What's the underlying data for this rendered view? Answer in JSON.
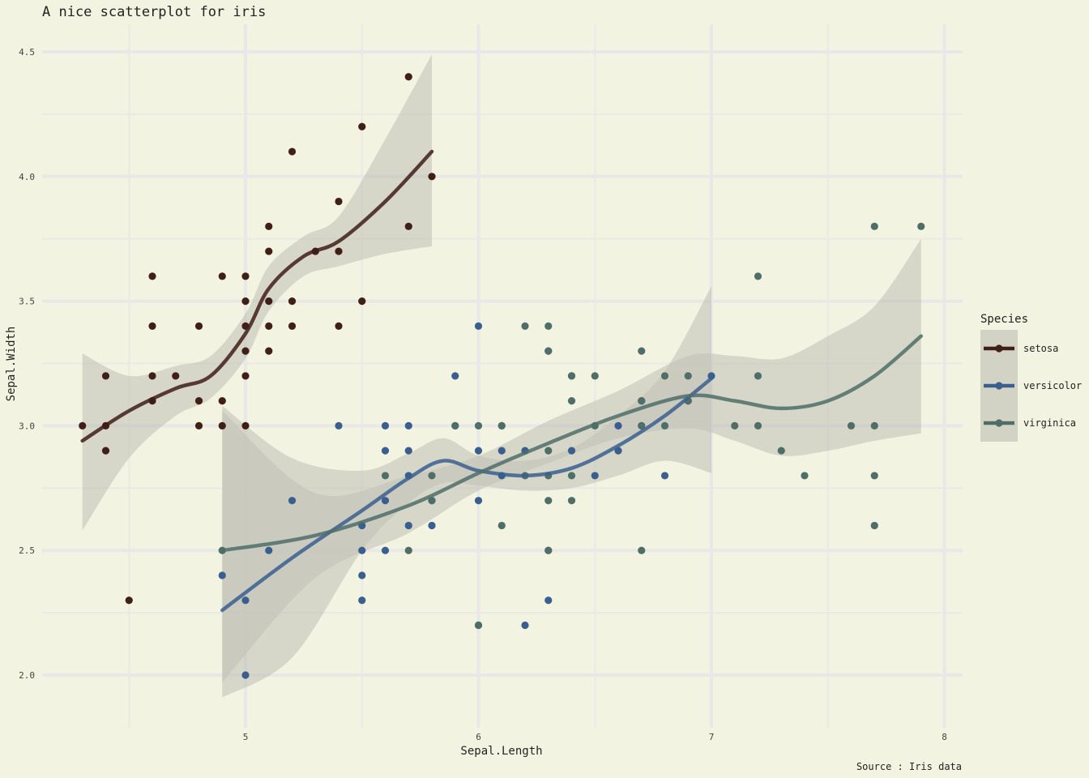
{
  "chart_data": {
    "type": "scatter",
    "title": "A nice scatterplot for iris",
    "xlabel": "Sepal.Length",
    "ylabel": "Sepal.Width",
    "caption": "Source : Iris data",
    "xlim": [
      4.2,
      8.1
    ],
    "ylim": [
      1.8,
      4.6
    ],
    "x_ticks": [
      5,
      6,
      7,
      8
    ],
    "x_tick_labels": [
      "5",
      "6",
      "7",
      "8"
    ],
    "y_ticks": [
      2.0,
      2.5,
      3.0,
      3.5,
      4.0,
      4.5
    ],
    "y_tick_labels": [
      "2.0",
      "2.5",
      "3.0",
      "3.5",
      "4.0",
      "4.5"
    ],
    "grid": true,
    "legend": {
      "title": "Species",
      "position": "right"
    },
    "series": [
      {
        "name": "setosa",
        "color": "#3f1f18",
        "points": [
          [
            4.3,
            3.0
          ],
          [
            4.4,
            3.0
          ],
          [
            4.4,
            3.2
          ],
          [
            4.4,
            2.9
          ],
          [
            4.5,
            2.3
          ],
          [
            4.6,
            3.6
          ],
          [
            4.6,
            3.4
          ],
          [
            4.6,
            3.2
          ],
          [
            4.6,
            3.1
          ],
          [
            4.7,
            3.2
          ],
          [
            4.8,
            3.4
          ],
          [
            4.8,
            3.1
          ],
          [
            4.8,
            3.0
          ],
          [
            4.9,
            3.6
          ],
          [
            4.9,
            3.1
          ],
          [
            4.9,
            3.0
          ],
          [
            5.0,
            3.6
          ],
          [
            5.0,
            3.5
          ],
          [
            5.0,
            3.4
          ],
          [
            5.0,
            3.3
          ],
          [
            5.0,
            3.2
          ],
          [
            5.0,
            3.0
          ],
          [
            5.1,
            3.8
          ],
          [
            5.1,
            3.7
          ],
          [
            5.1,
            3.5
          ],
          [
            5.1,
            3.4
          ],
          [
            5.1,
            3.3
          ],
          [
            5.2,
            4.1
          ],
          [
            5.2,
            3.5
          ],
          [
            5.2,
            3.4
          ],
          [
            5.3,
            3.7
          ],
          [
            5.4,
            3.9
          ],
          [
            5.4,
            3.7
          ],
          [
            5.4,
            3.4
          ],
          [
            5.5,
            4.2
          ],
          [
            5.5,
            3.5
          ],
          [
            5.7,
            4.4
          ],
          [
            5.7,
            3.8
          ],
          [
            5.8,
            4.0
          ]
        ],
        "smooth": [
          [
            4.3,
            2.94
          ],
          [
            4.5,
            3.06
          ],
          [
            4.7,
            3.15
          ],
          [
            4.85,
            3.2
          ],
          [
            5.0,
            3.37
          ],
          [
            5.1,
            3.55
          ],
          [
            5.25,
            3.68
          ],
          [
            5.4,
            3.74
          ],
          [
            5.6,
            3.9
          ],
          [
            5.8,
            4.1
          ]
        ],
        "band_upper": [
          [
            4.3,
            3.29
          ],
          [
            4.5,
            3.2
          ],
          [
            4.7,
            3.24
          ],
          [
            4.85,
            3.28
          ],
          [
            5.0,
            3.45
          ],
          [
            5.1,
            3.64
          ],
          [
            5.25,
            3.76
          ],
          [
            5.4,
            3.84
          ],
          [
            5.6,
            4.15
          ],
          [
            5.8,
            4.49
          ]
        ],
        "band_lower": [
          [
            4.3,
            2.58
          ],
          [
            4.5,
            2.87
          ],
          [
            4.7,
            3.04
          ],
          [
            4.85,
            3.11
          ],
          [
            5.0,
            3.27
          ],
          [
            5.1,
            3.46
          ],
          [
            5.25,
            3.6
          ],
          [
            5.4,
            3.64
          ],
          [
            5.6,
            3.69
          ],
          [
            5.8,
            3.72
          ]
        ]
      },
      {
        "name": "versicolor",
        "color": "#3a5f8f",
        "points": [
          [
            4.9,
            2.4
          ],
          [
            5.0,
            2.3
          ],
          [
            5.0,
            2.0
          ],
          [
            5.1,
            2.5
          ],
          [
            5.2,
            2.7
          ],
          [
            5.4,
            3.0
          ],
          [
            5.5,
            2.6
          ],
          [
            5.5,
            2.5
          ],
          [
            5.5,
            2.4
          ],
          [
            5.5,
            2.3
          ],
          [
            5.6,
            3.0
          ],
          [
            5.6,
            2.9
          ],
          [
            5.6,
            2.7
          ],
          [
            5.6,
            2.5
          ],
          [
            5.7,
            3.0
          ],
          [
            5.7,
            2.9
          ],
          [
            5.7,
            2.8
          ],
          [
            5.7,
            2.6
          ],
          [
            5.8,
            2.7
          ],
          [
            5.8,
            2.6
          ],
          [
            5.9,
            3.2
          ],
          [
            5.9,
            3.0
          ],
          [
            6.0,
            3.4
          ],
          [
            6.0,
            2.9
          ],
          [
            6.0,
            2.7
          ],
          [
            6.0,
            2.2
          ],
          [
            6.1,
            3.0
          ],
          [
            6.1,
            2.9
          ],
          [
            6.1,
            2.8
          ],
          [
            6.2,
            2.9
          ],
          [
            6.2,
            2.2
          ],
          [
            6.3,
            3.3
          ],
          [
            6.3,
            2.5
          ],
          [
            6.3,
            2.3
          ],
          [
            6.4,
            3.2
          ],
          [
            6.4,
            2.9
          ],
          [
            6.5,
            2.8
          ],
          [
            6.6,
            3.0
          ],
          [
            6.6,
            2.9
          ],
          [
            6.7,
            3.1
          ],
          [
            6.7,
            3.0
          ],
          [
            6.8,
            2.8
          ],
          [
            6.9,
            3.1
          ],
          [
            7.0,
            3.2
          ]
        ],
        "smooth": [
          [
            4.9,
            2.26
          ],
          [
            5.2,
            2.47
          ],
          [
            5.5,
            2.66
          ],
          [
            5.7,
            2.79
          ],
          [
            5.85,
            2.86
          ],
          [
            6.0,
            2.82
          ],
          [
            6.2,
            2.8
          ],
          [
            6.4,
            2.83
          ],
          [
            6.6,
            2.92
          ],
          [
            6.8,
            3.04
          ],
          [
            7.0,
            3.19
          ]
        ],
        "band_upper": [
          [
            4.9,
            3.08
          ],
          [
            5.2,
            2.87
          ],
          [
            5.5,
            2.82
          ],
          [
            5.7,
            2.89
          ],
          [
            5.85,
            2.95
          ],
          [
            6.0,
            2.88
          ],
          [
            6.2,
            2.86
          ],
          [
            6.4,
            2.91
          ],
          [
            6.6,
            3.04
          ],
          [
            6.8,
            3.22
          ],
          [
            7.0,
            3.56
          ]
        ],
        "band_lower": [
          [
            4.9,
            1.91
          ],
          [
            5.2,
            2.07
          ],
          [
            5.5,
            2.5
          ],
          [
            5.7,
            2.69
          ],
          [
            5.85,
            2.77
          ],
          [
            6.0,
            2.76
          ],
          [
            6.2,
            2.74
          ],
          [
            6.4,
            2.75
          ],
          [
            6.6,
            2.8
          ],
          [
            6.8,
            2.86
          ],
          [
            7.0,
            2.81
          ]
        ]
      },
      {
        "name": "virginica",
        "color": "#4f6e68",
        "points": [
          [
            4.9,
            2.5
          ],
          [
            5.6,
            2.8
          ],
          [
            5.7,
            2.5
          ],
          [
            5.8,
            2.8
          ],
          [
            5.8,
            2.7
          ],
          [
            5.9,
            3.0
          ],
          [
            6.0,
            3.0
          ],
          [
            6.0,
            2.2
          ],
          [
            6.1,
            3.0
          ],
          [
            6.1,
            2.6
          ],
          [
            6.2,
            3.4
          ],
          [
            6.2,
            2.8
          ],
          [
            6.3,
            3.4
          ],
          [
            6.3,
            3.3
          ],
          [
            6.3,
            2.9
          ],
          [
            6.3,
            2.8
          ],
          [
            6.3,
            2.7
          ],
          [
            6.3,
            2.5
          ],
          [
            6.4,
            3.2
          ],
          [
            6.4,
            3.1
          ],
          [
            6.4,
            2.8
          ],
          [
            6.4,
            2.7
          ],
          [
            6.5,
            3.2
          ],
          [
            6.5,
            3.0
          ],
          [
            6.7,
            3.3
          ],
          [
            6.7,
            3.1
          ],
          [
            6.7,
            3.0
          ],
          [
            6.7,
            2.5
          ],
          [
            6.8,
            3.2
          ],
          [
            6.8,
            3.0
          ],
          [
            6.9,
            3.2
          ],
          [
            6.9,
            3.1
          ],
          [
            7.1,
            3.0
          ],
          [
            7.2,
            3.6
          ],
          [
            7.2,
            3.2
          ],
          [
            7.2,
            3.0
          ],
          [
            7.3,
            2.9
          ],
          [
            7.4,
            2.8
          ],
          [
            7.6,
            3.0
          ],
          [
            7.7,
            3.8
          ],
          [
            7.7,
            3.0
          ],
          [
            7.7,
            2.8
          ],
          [
            7.7,
            2.6
          ],
          [
            7.9,
            3.8
          ]
        ],
        "smooth": [
          [
            4.9,
            2.5
          ],
          [
            5.3,
            2.56
          ],
          [
            5.7,
            2.68
          ],
          [
            6.0,
            2.81
          ],
          [
            6.3,
            2.93
          ],
          [
            6.6,
            3.04
          ],
          [
            6.9,
            3.12
          ],
          [
            7.1,
            3.1
          ],
          [
            7.3,
            3.07
          ],
          [
            7.5,
            3.1
          ],
          [
            7.7,
            3.2
          ],
          [
            7.9,
            3.36
          ]
        ],
        "band_upper": [
          [
            4.9,
            3.06
          ],
          [
            5.3,
            2.73
          ],
          [
            5.7,
            2.8
          ],
          [
            6.0,
            2.88
          ],
          [
            6.3,
            3.02
          ],
          [
            6.6,
            3.14
          ],
          [
            6.9,
            3.28
          ],
          [
            7.1,
            3.28
          ],
          [
            7.3,
            3.27
          ],
          [
            7.5,
            3.36
          ],
          [
            7.7,
            3.48
          ],
          [
            7.9,
            3.75
          ]
        ],
        "band_lower": [
          [
            4.9,
            1.97
          ],
          [
            5.3,
            2.39
          ],
          [
            5.7,
            2.57
          ],
          [
            6.0,
            2.74
          ],
          [
            6.3,
            2.85
          ],
          [
            6.6,
            2.95
          ],
          [
            6.9,
            2.99
          ],
          [
            7.1,
            2.94
          ],
          [
            7.3,
            2.88
          ],
          [
            7.5,
            2.9
          ],
          [
            7.7,
            2.94
          ],
          [
            7.9,
            2.97
          ]
        ]
      }
    ]
  }
}
